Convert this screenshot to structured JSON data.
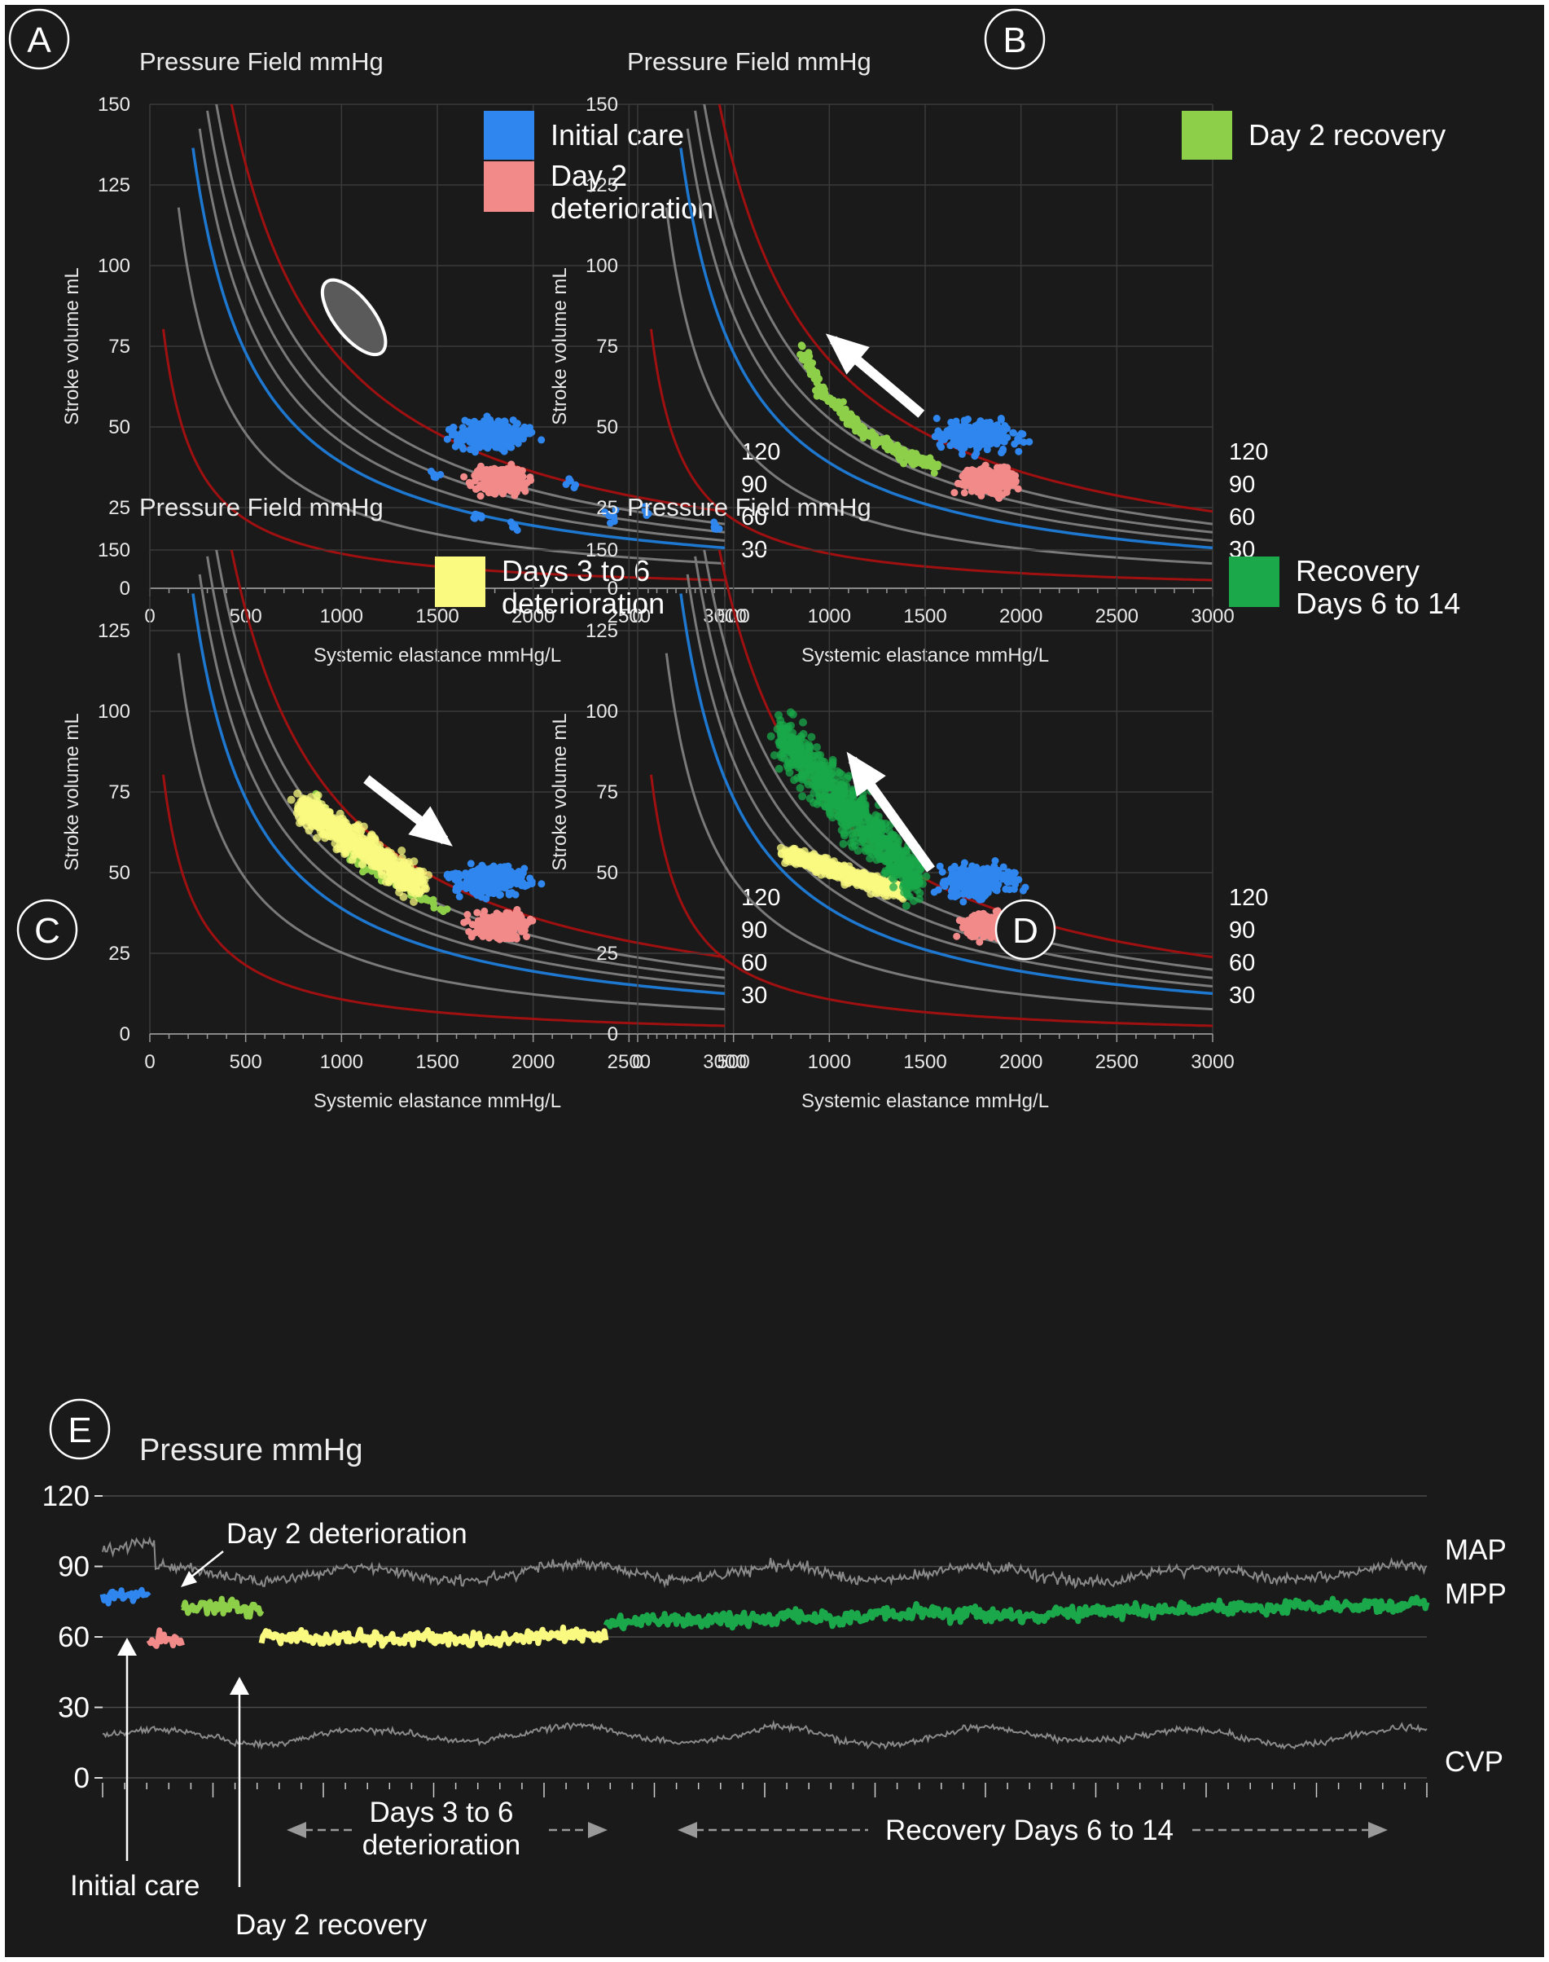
{
  "figure": {
    "colors": {
      "background": "#1a1a1a",
      "initial_care": "#2e86ee",
      "day2_deterioration": "#f28a8a",
      "day2_recovery": "#8ecf4a",
      "days3to6": "#fafa80",
      "recovery": "#1aa84a",
      "boundary": "#a01010",
      "isobar_gray": "#7a7a7a",
      "isobar_blue": "#1e78d0"
    }
  },
  "chart_data": [
    {
      "type": "scatter",
      "panel": "A",
      "title": "Pressure Field mmHg",
      "xlabel": "Systemic elastance mmHg/L",
      "ylabel": "Stroke volume mL",
      "xlim": [
        0,
        3000
      ],
      "ylim": [
        0,
        150
      ],
      "xticks": [
        "0",
        "500",
        "1000",
        "1500",
        "2000",
        "2500",
        "3000"
      ],
      "yticks": [
        "0",
        "25",
        "50",
        "75",
        "100",
        "125",
        "150"
      ],
      "isobars": [
        "120",
        "90",
        "60",
        "30"
      ],
      "legend": [
        {
          "label": "Initial care",
          "color": "#2e86ee"
        },
        {
          "label_lines": [
            "Day 2",
            "deterioration"
          ],
          "color": "#f28a8a"
        }
      ],
      "annotations": [
        "ellipse"
      ],
      "series": [
        {
          "name": "Initial care",
          "cluster": {
            "x": [
              1450,
              2100
            ],
            "y": [
              40,
              55
            ]
          },
          "trail": [
            [
              1500,
              35
            ],
            [
              1700,
              22
            ],
            [
              1900,
              19
            ],
            [
              2200,
              33
            ],
            [
              2400,
              22
            ],
            [
              2600,
              24
            ],
            [
              2950,
              19
            ]
          ]
        },
        {
          "name": "Day 2 deterioration",
          "cluster": {
            "x": [
              1600,
              2050
            ],
            "y": [
              27,
              40
            ]
          }
        }
      ]
    },
    {
      "type": "scatter",
      "panel": "B",
      "title": "Pressure Field mmHg",
      "xlabel": "Systemic elastance mmHg/L",
      "ylabel": "Stroke volume mL",
      "xlim": [
        0,
        3000
      ],
      "ylim": [
        0,
        150
      ],
      "xticks": [
        "0",
        "500",
        "1000",
        "1500",
        "2000",
        "2500",
        "3000"
      ],
      "yticks": [
        "0",
        "25",
        "50",
        "75",
        "100",
        "125",
        "150"
      ],
      "isobars": [
        "120",
        "90",
        "60",
        "30"
      ],
      "legend": [
        {
          "label": "Day 2 recovery",
          "color": "#8ecf4a"
        }
      ],
      "annotations": [
        "arrow-up-left"
      ],
      "series": [
        {
          "name": "Initial care",
          "cluster": {
            "x": [
              1450,
              2100
            ],
            "y": [
              40,
              55
            ]
          }
        },
        {
          "name": "Day 2 deterioration",
          "cluster": {
            "x": [
              1600,
              2050
            ],
            "y": [
              27,
              40
            ]
          }
        },
        {
          "name": "Day 2 recovery",
          "path": [
            [
              850,
              75
            ],
            [
              950,
              62
            ],
            [
              1100,
              52
            ],
            [
              1250,
              46
            ],
            [
              1400,
              41
            ],
            [
              1550,
              38
            ]
          ]
        }
      ]
    },
    {
      "type": "scatter",
      "panel": "C",
      "title": "Pressure Field mmHg",
      "xlabel": "Systemic elastance mmHg/L",
      "ylabel": "Stroke volume mL",
      "xlim": [
        0,
        3000
      ],
      "ylim": [
        0,
        150
      ],
      "xticks": [
        "0",
        "500",
        "1000",
        "1500",
        "2000",
        "2500",
        "3000"
      ],
      "yticks": [
        "0",
        "25",
        "50",
        "75",
        "100",
        "125",
        "150"
      ],
      "isobars": [
        "120",
        "90",
        "60",
        "30"
      ],
      "legend": [
        {
          "label_lines": [
            "Days 3 to 6",
            "deterioration"
          ],
          "color": "#fafa80"
        }
      ],
      "annotations": [
        "arrow-down-right"
      ],
      "series": [
        {
          "name": "Initial care",
          "cluster": {
            "x": [
              1450,
              2100
            ],
            "y": [
              40,
              55
            ]
          }
        },
        {
          "name": "Day 2 deterioration",
          "cluster": {
            "x": [
              1600,
              2050
            ],
            "y": [
              27,
              40
            ]
          }
        },
        {
          "name": "Day 2 recovery",
          "path": [
            [
              850,
              75
            ],
            [
              1100,
              52
            ],
            [
              1550,
              38
            ]
          ]
        },
        {
          "name": "Days 3 to 6 deterioration",
          "cluster": {
            "x": [
              750,
              1450
            ],
            "y": [
              42,
              75
            ]
          }
        }
      ]
    },
    {
      "type": "scatter",
      "panel": "D",
      "title": "Pressure Field mmHg",
      "xlabel": "Systemic elastance mmHg/L",
      "ylabel": "Stroke volume mL",
      "xlim": [
        0,
        3000
      ],
      "ylim": [
        0,
        150
      ],
      "xticks": [
        "0",
        "500",
        "1000",
        "1500",
        "2000",
        "2500",
        "3000"
      ],
      "yticks": [
        "0",
        "25",
        "50",
        "75",
        "100",
        "125",
        "150"
      ],
      "isobars": [
        "120",
        "90",
        "60",
        "30"
      ],
      "legend": [
        {
          "label_lines": [
            "Recovery",
            "Days 6 to 14"
          ],
          "color": "#1aa84a"
        }
      ],
      "annotations": [
        "arrow-up-left"
      ],
      "series": [
        {
          "name": "Initial care",
          "cluster": {
            "x": [
              1450,
              2100
            ],
            "y": [
              40,
              55
            ]
          }
        },
        {
          "name": "Day 2 deterioration",
          "cluster": {
            "x": [
              1600,
              2050
            ],
            "y": [
              27,
              40
            ]
          }
        },
        {
          "name": "Days 3 to 6 deterioration",
          "cluster": {
            "x": [
              750,
              1400
            ],
            "y": [
              42,
              58
            ]
          }
        },
        {
          "name": "Recovery Days 6 to 14",
          "cluster": {
            "x": [
              700,
              1500
            ],
            "y": [
              40,
              100
            ]
          }
        }
      ]
    },
    {
      "type": "line",
      "panel": "E",
      "title": "Pressure mmHg",
      "ylim": [
        0,
        120
      ],
      "yticks": [
        "0",
        "30",
        "60",
        "90",
        "120"
      ],
      "series_labels": [
        "MAP",
        "MPP",
        "CVP"
      ],
      "annotations": {
        "day2_deterioration": "Day 2 deterioration",
        "initial_care": "Initial care",
        "day2_recovery": "Day 2 recovery",
        "days3to6": [
          "Days 3 to 6",
          "deterioration"
        ],
        "recovery": "Recovery Days 6 to 14"
      },
      "segments": [
        {
          "name": "Initial care",
          "color": "#2e86ee",
          "t": [
            0,
            0.035
          ],
          "mpp": 78
        },
        {
          "name": "Day 2 deterioration",
          "color": "#f28a8a",
          "t": [
            0.035,
            0.06
          ],
          "mpp": 58
        },
        {
          "name": "Day 2 recovery",
          "color": "#8ecf4a",
          "t": [
            0.06,
            0.12
          ],
          "mpp": 72
        },
        {
          "name": "Days 3 to 6 deterioration",
          "color": "#fafa80",
          "t": [
            0.12,
            0.38
          ],
          "mpp": 60
        },
        {
          "name": "Recovery Days 6 to 14",
          "color": "#1aa84a",
          "t": [
            0.38,
            1.0
          ],
          "mpp": 68
        }
      ],
      "map_level": 87,
      "cvp_level": 18
    }
  ]
}
